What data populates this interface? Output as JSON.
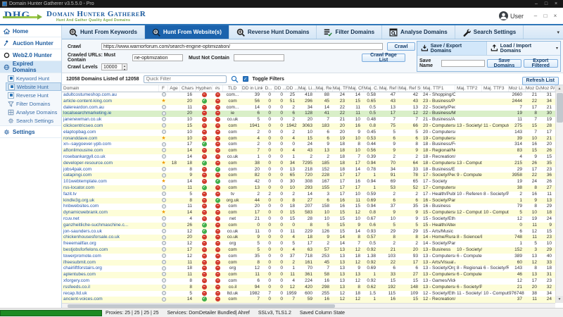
{
  "window": {
    "title": "Domain Hunter Gatherer v3.5.5.0 - Pro"
  },
  "header": {
    "logo_acronym": "DHG",
    "app_name": "Domain Hunter GathereR",
    "tagline": "Hunt And Gather Quality Aged Domains",
    "user": "User"
  },
  "tabs": [
    {
      "label": "Hunt From Keywords"
    },
    {
      "label": "Hunt From Website(s)"
    },
    {
      "label": "Reverse Hunt Domains"
    },
    {
      "label": "Filter Domains"
    },
    {
      "label": "Analyse Domains"
    },
    {
      "label": "Search Settings"
    }
  ],
  "sidebar": {
    "items": [
      {
        "label": "Home"
      },
      {
        "label": "Auction Hunter"
      },
      {
        "label": "Web2.0 Hunter"
      },
      {
        "label": "Expired Domains"
      },
      {
        "label": "Settings"
      }
    ],
    "expired_subitems": [
      {
        "label": "Keyword Hunt"
      },
      {
        "label": "Website Hunt"
      },
      {
        "label": "Reverse Hunt"
      },
      {
        "label": "Filter Domains"
      },
      {
        "label": "Analyse Domains"
      },
      {
        "label": "Search Settings"
      }
    ]
  },
  "crawl": {
    "crawl_label": "Crawl",
    "url": "https://www.warriorforum.com/search-engine-optimization/",
    "must_contain_label": "Crawled URLs: Must Contain",
    "must_contain": "ne-optimization",
    "must_not_contain_label": "Must Not Contain",
    "must_not_contain": "",
    "levels_label": "Crawl Levels",
    "levels": "10000",
    "crawl_button": "Crawl",
    "crawl_page_list_button": "Crawl Page List"
  },
  "saveload": {
    "save_export": "Save / Export Domains",
    "load_import": "Load / Import Domains",
    "save_name_label": "Save Name",
    "save_name": "",
    "save_domains_button": "Save Domains",
    "export_filtered_button": "Export Filtered"
  },
  "filter_bar": {
    "count": "12058 Domains Listed of 12058",
    "quick_filter_placeholder": "Quick Filter",
    "toggle_filters": "Toggle Filters",
    "refresh_button": "Refresh List"
  },
  "table": {
    "columns": [
      "Domain",
      "F",
      "Age",
      "Chars",
      "Hyphen",
      "#s",
      "TLD",
      "DD in Links",
      "D...",
      "DD ...",
      "DD ...",
      "Maj. Li...",
      "Maj. Re...",
      "Maj. TF",
      "Maj. CF",
      "Maj. C...",
      "Maj. Ref IPs",
      "Maj. Ref Su...",
      "Maj. TTF1",
      "Maj. TTF2",
      "Maj. TTF3",
      "Moz Li...",
      "Moz DA",
      "Moz PA"
    ],
    "selected_row_index": 3,
    "rows": [
      [
        "adultcostumeshop.com.au",
        "norm",
        "",
        16,
        "no",
        "no",
        "com...",
        39,
        0,
        0,
        25,
        418,
        88,
        24,
        14,
        0.58,
        47,
        42,
        "24 - Shopping/Clothi...",
        "",
        "",
        2660,
        21,
        31
      ],
      [
        "article-content-king.com",
        "fav",
        "",
        20,
        "yes",
        "no",
        "com",
        56,
        0,
        0,
        51,
        296,
        45,
        23,
        15,
        0.65,
        43,
        43,
        "23 - Business/Publish...",
        "",
        "",
        2444,
        22,
        34
      ],
      [
        "dalereardon.com.au",
        "norm",
        "",
        11,
        "no",
        "no",
        "com...",
        14,
        0,
        0,
        2,
        34,
        14,
        22,
        11,
        0.5,
        13,
        13,
        "22 - Society/People",
        "",
        "",
        7,
        17,
        21
      ],
      [
        "localsearchmarketing.ie",
        "norm",
        "",
        20,
        "no",
        "no",
        "ie",
        6,
        0,
        0,
        6,
        128,
        41,
        22,
        11,
        0.5,
        17,
        12,
        "22 - Business/Market...",
        "",
        "",
        19,
        8,
        30
      ],
      [
        "janenewman.co.uk",
        "norm",
        "",
        10,
        "no",
        "no",
        "co.uk",
        5,
        0,
        0,
        2,
        20,
        7,
        21,
        10,
        0.48,
        7,
        7,
        "21 - Business/Arts an...",
        "",
        "",
        11,
        7,
        19
      ],
      [
        "clickcentricseo.com",
        "norm",
        "",
        15,
        "no",
        "no",
        "com",
        1941,
        0,
        0,
        1942,
        3063,
        183,
        20,
        16,
        0.8,
        75,
        66,
        "20 - Computers/Inter...",
        "13 - Society/Rel...",
        "11 - Computer...",
        275,
        15,
        28
      ],
      [
        "elaptopbag.com",
        "norm",
        "",
        10,
        "no",
        "no",
        "com",
        2,
        0,
        0,
        2,
        10,
        6,
        20,
        9,
        0.45,
        5,
        5,
        "20 - Computers/Har...",
        "",
        "",
        143,
        7,
        17
      ],
      [
        "ronanddave.com",
        "fav",
        "",
        10,
        "no",
        "no",
        "com",
        4,
        0,
        0,
        4,
        15,
        6,
        19,
        10,
        0.53,
        6,
        6,
        "19 - Computers/Soft...",
        "",
        "",
        39,
        10,
        21
      ],
      [
        "xn--saygoever-ypb.com",
        "norm",
        "",
        17,
        "yes",
        "no",
        "com",
        2,
        0,
        0,
        0,
        24,
        9,
        18,
        8,
        0.44,
        9,
        8,
        "18 - Business/Food a...",
        "",
        "",
        314,
        16,
        20
      ],
      [
        "aftonlimousine.com",
        "norm",
        "",
        14,
        "no",
        "no",
        "com",
        7,
        0,
        0,
        4,
        43,
        13,
        18,
        10,
        0.56,
        9,
        9,
        "18 - Regional/North ...",
        "",
        "",
        83,
        15,
        26
      ],
      [
        "rosebankargyll.co.uk",
        "norm",
        "",
        14,
        "no",
        "no",
        "co.uk",
        1,
        0,
        0,
        1,
        2,
        2,
        18,
        7,
        0.39,
        2,
        2,
        "18 - Recreation/Travel",
        "",
        "",
        4,
        9,
        15
      ],
      [
        "developer-resource.com",
        "fav",
        18,
        18,
        "yes",
        "no",
        "com",
        38,
        0,
        0,
        34,
        7295,
        185,
        18,
        17,
        0.94,
        70,
        64,
        "18 - Computers/Soft...",
        "13 - Computers/...",
        "",
        215,
        26,
        35
      ],
      [
        "jobs4pak.com",
        "norm",
        "",
        8,
        "no",
        "yes",
        "com",
        20,
        0,
        0,
        13,
        218,
        152,
        18,
        14,
        0.78,
        34,
        33,
        "18 - Business/Emplo...",
        "",
        "",
        29,
        17,
        23
      ],
      [
        "catapingi.com",
        "norm",
        "",
        9,
        "no",
        "no",
        "com",
        82,
        0,
        0,
        65,
        720,
        228,
        17,
        17,
        1,
        91,
        78,
        "17 - Society/People",
        "9 - Computers/I...",
        "",
        3958,
        22,
        36
      ],
      [
        "101webtemplate.com",
        "fav",
        "",
        14,
        "no",
        "yes",
        "com",
        42,
        0,
        0,
        30,
        308,
        167,
        17,
        16,
        0.94,
        69,
        65,
        "17 - Society",
        "",
        "",
        19,
        24,
        26
      ],
      [
        "rss-locator.com",
        "norm",
        "",
        11,
        "yes",
        "no",
        "com",
        13,
        0,
        0,
        10,
        293,
        155,
        17,
        17,
        1,
        53,
        52,
        "17 - Computers/Inter...",
        "",
        "",
        38,
        8,
        27
      ],
      [
        "fazit.tv",
        "norm",
        "",
        5,
        "no",
        "no",
        "tv",
        2,
        2,
        0,
        2,
        14,
        3,
        17,
        10,
        0.59,
        2,
        2,
        "17 - Health/Public H...",
        "10 - Reference/E...",
        "8 - Society/Phil...",
        2,
        16,
        11
      ],
      [
        "kindle3g.org.uk",
        "norm",
        "",
        8,
        "no",
        "yes",
        "org.uk",
        44,
        0,
        0,
        8,
        27,
        6,
        16,
        11,
        0.69,
        6,
        6,
        "16 - Society/Paranor...",
        "",
        "",
        1,
        9,
        13
      ],
      [
        "hnbwebsites.com",
        "norm",
        "",
        11,
        "no",
        "no",
        "com",
        20,
        0,
        0,
        18,
        207,
        158,
        16,
        15,
        0.94,
        37,
        35,
        "16 - Business",
        "",
        "",
        79,
        8,
        29
      ],
      [
        "dynamicwebrank.com",
        "fav",
        "",
        14,
        "no",
        "no",
        "com",
        17,
        0,
        0,
        15,
        583,
        10,
        15,
        12,
        0.8,
        9,
        9,
        "15 - Computers/Soft...",
        "12 - Computers/...",
        "10 - Computer...",
        5,
        10,
        18
      ],
      [
        "rcuv.net",
        "norm",
        "",
        4,
        "no",
        "no",
        "net",
        21,
        0,
        0,
        15,
        28,
        10,
        15,
        10,
        0.67,
        10,
        9,
        "15 - Society/Ethnicity",
        "",
        "",
        12,
        19,
        24
      ],
      [
        "ganzheitliche-suchmaschine.c...",
        "norm",
        "",
        26,
        "yes",
        "no",
        "com",
        0,
        0,
        0,
        0,
        8,
        5,
        15,
        9,
        0.6,
        5,
        5,
        "15 - Health/Alternative",
        "",
        "",
        0,
        11,
        9
      ],
      [
        "jon-saunders.co.uk",
        "norm",
        "",
        12,
        "yes",
        "no",
        "co.uk",
        11,
        0,
        0,
        11,
        229,
        126,
        15,
        14,
        0.93,
        29,
        29,
        "15 - Arts/Music",
        "",
        "",
        6,
        12,
        15
      ],
      [
        "chickenhousesforsale.co.uk",
        "norm",
        "",
        20,
        "no",
        "no",
        "co.uk",
        9,
        0,
        0,
        4,
        18,
        9,
        14,
        8,
        0.57,
        8,
        8,
        "14 - Home/Rural Livi...",
        "8 - Science/Biolo...",
        "",
        748,
        11,
        23
      ],
      [
        "freeemailfax.org",
        "norm",
        "",
        12,
        "no",
        "no",
        "org",
        5,
        0,
        0,
        5,
        17,
        2,
        14,
        7,
        0.5,
        2,
        2,
        "14 - Society/Paranor...",
        "",
        "",
        1,
        5,
        10
      ],
      [
        "bestjobsforfelons.com",
        "norm",
        "",
        17,
        "no",
        "no",
        "com",
        5,
        0,
        0,
        4,
        63,
        57,
        13,
        12,
        0.92,
        21,
        20,
        "13 - Business",
        "10 - Society/Reli...",
        "",
        152,
        3,
        29
      ],
      [
        "towerpromote.com",
        "norm",
        "",
        12,
        "no",
        "no",
        "com",
        35,
        0,
        0,
        37,
        718,
        253,
        13,
        18,
        1.38,
        103,
        93,
        "13 - Computers/Soft...",
        "6 - Computers/S...",
        "",
        389,
        13,
        40
      ],
      [
        "ifreesubmit.com",
        "norm",
        "",
        11,
        "no",
        "no",
        "com",
        8,
        0,
        0,
        2,
        161,
        45,
        13,
        12,
        0.92,
        22,
        17,
        "13 - Arts/Visual Arts",
        "",
        "",
        60,
        12,
        33
      ],
      [
        "chairliftforstairs.org",
        "norm",
        "",
        18,
        "no",
        "no",
        "org",
        12,
        0,
        0,
        1,
        70,
        7,
        13,
        9,
        0.69,
        6,
        6,
        "13 - Society/Organiz...",
        "8 - Regional/Asia",
        "6 - Society/Reli...",
        143,
        8,
        18
      ],
      [
        "aplentubes.com",
        "norm",
        "",
        11,
        "no",
        "no",
        "com",
        11,
        0,
        0,
        11,
        361,
        58,
        13,
        13,
        1,
        33,
        27,
        "13 - Computers/Soft...",
        "6 - Computers/S...",
        "",
        46,
        13,
        31
      ],
      [
        "xforgery.com",
        "norm",
        "",
        8,
        "no",
        "no",
        "com",
        6,
        0,
        0,
        4,
        224,
        16,
        13,
        12,
        0.92,
        15,
        15,
        "13 - Games/Video G...",
        "",
        "",
        12,
        17,
        23
      ],
      [
        "rssfeeds.co.il",
        "norm",
        "",
        8,
        "no",
        "no",
        "co.il",
        94,
        0,
        0,
        12,
        420,
        298,
        13,
        8,
        0.62,
        192,
        148,
        "13 - Computers/Inter...",
        "6 - Society/People",
        "",
        21,
        20,
        32
      ],
      [
        "recap.ltd.uk",
        "norm",
        "",
        5,
        "no",
        "no",
        "ltd.uk",
        1982,
        7,
        0,
        1959,
        600,
        255,
        12,
        18,
        1.5,
        115,
        109,
        "12 - Society/Ethnicity",
        "11 - Society/Gen...",
        "10 - Computer...",
        976748,
        38,
        34
      ],
      [
        "ancient-voices.com",
        "norm",
        "",
        14,
        "yes",
        "no",
        "com",
        7,
        0,
        0,
        7,
        59,
        16,
        12,
        12,
        1,
        16,
        15,
        "12 - Recreation/Travel",
        "",
        "",
        37,
        11,
        24
      ]
    ]
  },
  "status": {
    "proxies": "Proxies: 25 | 25 | 25 | 25",
    "services": "Services: DomDetailer Bundled| Ahref",
    "ssl": "SSLv3, TLS1.2",
    "column_state": "Saved Column State"
  }
}
